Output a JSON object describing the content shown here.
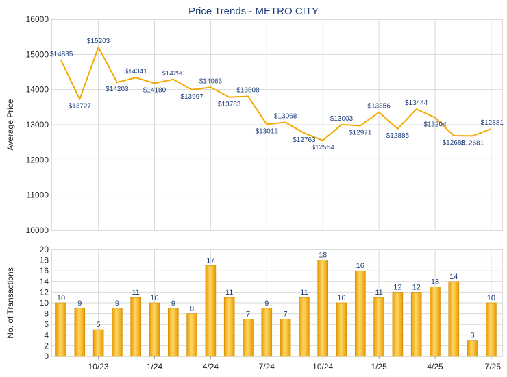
{
  "chart_data": [
    {
      "type": "line",
      "title": "Price Trends - METRO CITY",
      "ylabel": "Average Price",
      "ylim": [
        10000,
        16000
      ],
      "yticks": [
        10000,
        11000,
        12000,
        13000,
        14000,
        15000,
        16000
      ],
      "grid": true,
      "color": "#f5a800",
      "value_prefix": "$",
      "series": [
        {
          "values": [
            14835,
            13727,
            15203,
            14203,
            14341,
            14180,
            14290,
            13997,
            14063,
            13783,
            13808,
            13013,
            13068,
            12763,
            12554,
            13003,
            12971,
            13356,
            12885,
            13444,
            13204,
            12688,
            12681,
            12881
          ]
        }
      ]
    },
    {
      "type": "bar",
      "ylabel": "No. of Transactions",
      "ylim": [
        0,
        20
      ],
      "yticks": [
        0,
        2,
        4,
        6,
        8,
        10,
        12,
        14,
        16,
        18,
        20
      ],
      "x_tick_labels": [
        "10/23",
        "1/24",
        "4/24",
        "7/24",
        "10/24",
        "1/25",
        "4/25",
        "7/25"
      ],
      "x_tick_positions": [
        2,
        5,
        8,
        11,
        14,
        17,
        20,
        23
      ],
      "grid": true,
      "color": "#f5a800",
      "series": [
        {
          "values": [
            10,
            9,
            5,
            9,
            11,
            10,
            9,
            8,
            17,
            11,
            7,
            9,
            7,
            11,
            18,
            10,
            16,
            11,
            12,
            12,
            13,
            14,
            3,
            10
          ]
        }
      ]
    }
  ]
}
